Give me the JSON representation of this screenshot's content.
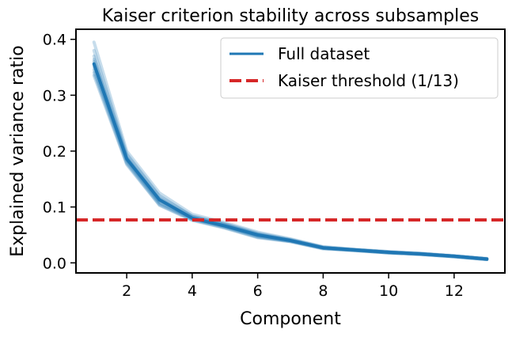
{
  "chart_data": {
    "type": "line",
    "title": "Kaiser criterion stability across subsamples",
    "xlabel": "Component",
    "ylabel": "Explained variance ratio",
    "xlim": [
      0.45,
      13.55
    ],
    "ylim": [
      -0.018,
      0.418
    ],
    "x_ticks": [
      "2",
      "4",
      "6",
      "8",
      "10",
      "12"
    ],
    "y_ticks": [
      "0.0",
      "0.1",
      "0.2",
      "0.3",
      "0.4"
    ],
    "x": [
      1,
      2,
      3,
      4,
      5,
      6,
      7,
      8,
      9,
      10,
      11,
      12,
      13
    ],
    "grid": false,
    "legend_position": "top-right",
    "series": [
      {
        "name": "Full dataset",
        "color": "#1f77b4",
        "style": "solid",
        "values": [
          0.356,
          0.186,
          0.113,
          0.08,
          0.066,
          0.05,
          0.04,
          0.027,
          0.023,
          0.019,
          0.016,
          0.012,
          0.007
        ]
      },
      {
        "name": "Kaiser threshold (1/13)",
        "color": "#d62728",
        "style": "dashed",
        "value": 0.0769
      }
    ],
    "subsample_curves": [
      [
        0.395,
        0.2,
        0.125,
        0.087,
        0.072,
        0.055,
        0.043,
        0.029,
        0.024,
        0.02,
        0.017,
        0.013,
        0.008
      ],
      [
        0.38,
        0.195,
        0.12,
        0.084,
        0.07,
        0.053,
        0.042,
        0.028,
        0.024,
        0.02,
        0.017,
        0.012,
        0.007
      ],
      [
        0.37,
        0.192,
        0.118,
        0.083,
        0.069,
        0.052,
        0.041,
        0.028,
        0.023,
        0.019,
        0.016,
        0.012,
        0.007
      ],
      [
        0.364,
        0.189,
        0.115,
        0.082,
        0.068,
        0.051,
        0.041,
        0.027,
        0.023,
        0.019,
        0.016,
        0.012,
        0.007
      ],
      [
        0.36,
        0.188,
        0.112,
        0.081,
        0.067,
        0.05,
        0.04,
        0.027,
        0.023,
        0.019,
        0.016,
        0.012,
        0.007
      ],
      [
        0.355,
        0.185,
        0.11,
        0.08,
        0.066,
        0.049,
        0.04,
        0.027,
        0.023,
        0.019,
        0.016,
        0.012,
        0.007
      ],
      [
        0.35,
        0.183,
        0.108,
        0.079,
        0.065,
        0.048,
        0.039,
        0.026,
        0.022,
        0.018,
        0.015,
        0.011,
        0.006
      ],
      [
        0.345,
        0.18,
        0.106,
        0.078,
        0.064,
        0.047,
        0.039,
        0.026,
        0.022,
        0.018,
        0.015,
        0.011,
        0.006
      ],
      [
        0.34,
        0.178,
        0.104,
        0.077,
        0.063,
        0.046,
        0.038,
        0.026,
        0.022,
        0.018,
        0.015,
        0.011,
        0.006
      ],
      [
        0.335,
        0.176,
        0.103,
        0.076,
        0.062,
        0.045,
        0.038,
        0.025,
        0.022,
        0.018,
        0.015,
        0.011,
        0.006
      ]
    ]
  }
}
